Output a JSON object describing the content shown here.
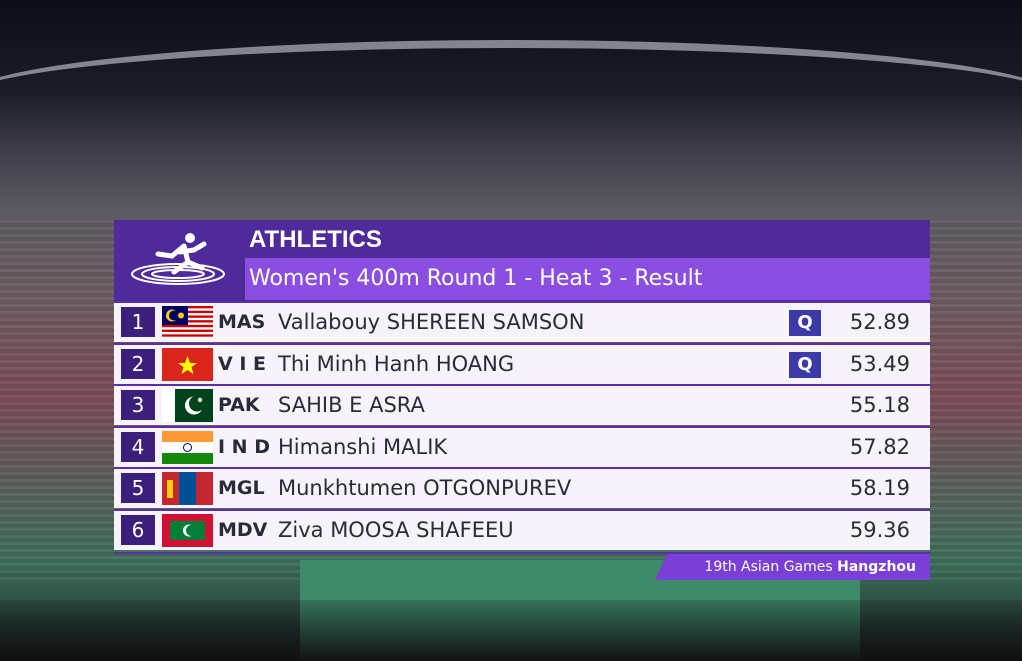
{
  "header": {
    "title": "ATHLETICS",
    "subtitle": "Women's 400m Round 1 - Heat 3 - Result"
  },
  "table": {
    "rows": [
      {
        "rank": "1",
        "noc": "MAS",
        "name": "Vallabouy SHEREEN SAMSON",
        "qualifier": "Q",
        "time": "52.89"
      },
      {
        "rank": "2",
        "noc": "V I E",
        "name": "Thi Minh Hanh HOANG",
        "qualifier": "Q",
        "time": "53.49"
      },
      {
        "rank": "3",
        "noc": "PAK",
        "name": "SAHIB E ASRA",
        "time": "55.18"
      },
      {
        "rank": "4",
        "noc": "I N D",
        "name": "Himanshi MALIK",
        "time": "57.82"
      },
      {
        "rank": "5",
        "noc": "MGL",
        "name": "Munkhtumen OTGONPUREV",
        "time": "58.19"
      },
      {
        "rank": "6",
        "noc": "MDV",
        "name": "Ziva MOOSA SHAFEEU",
        "time": "59.36"
      }
    ]
  },
  "footer": {
    "event": "19th Asian Games",
    "city": "Hangzhou"
  }
}
